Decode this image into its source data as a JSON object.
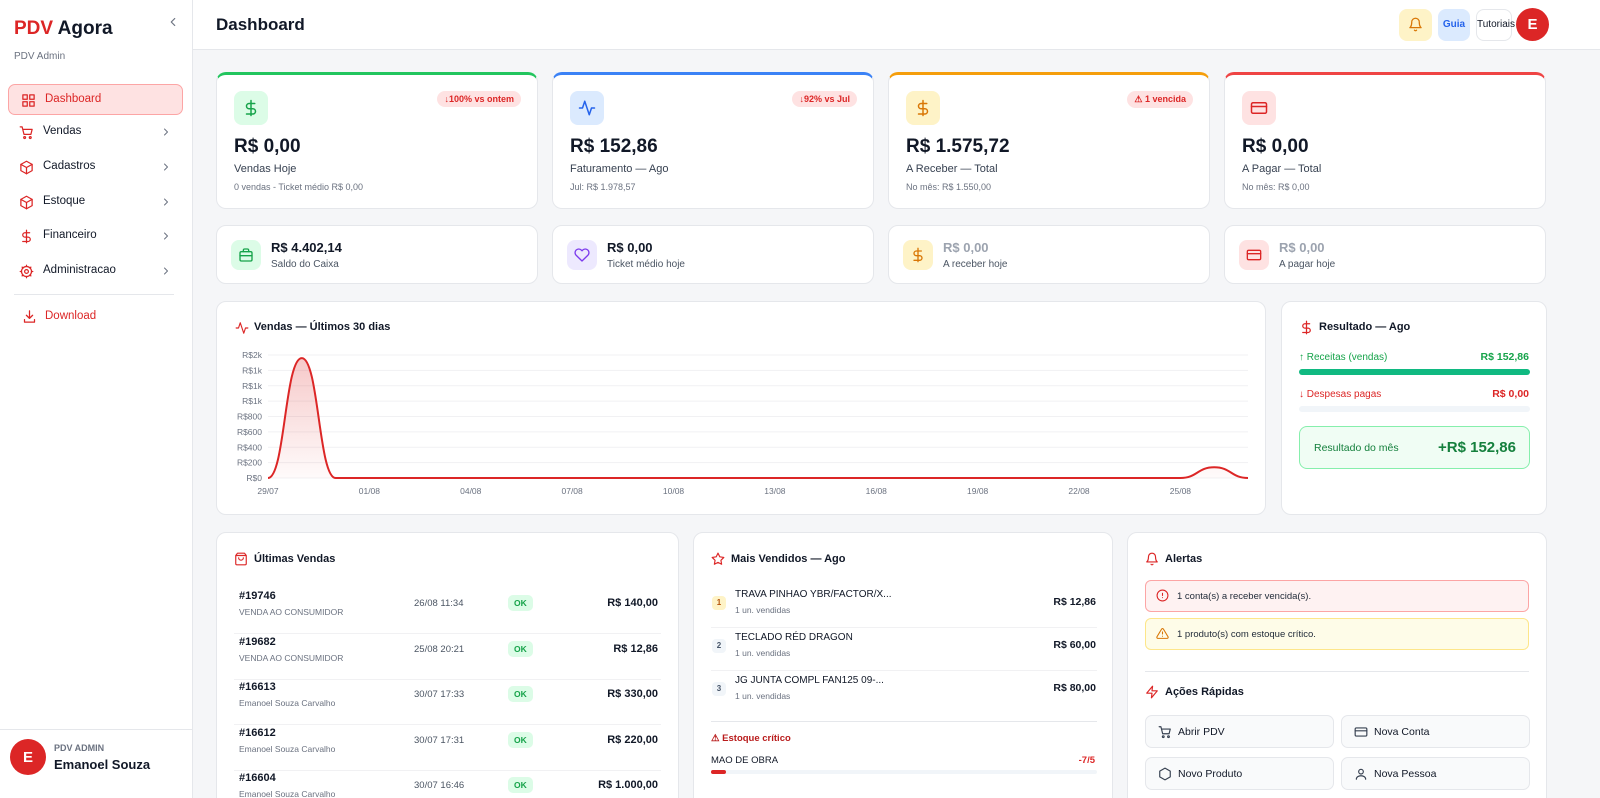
{
  "sidebar": {
    "brand_red": "PDV",
    "brand": "Agora",
    "subtitle": "PDV Admin",
    "nav": [
      "Dashboard",
      "Vendas",
      "Cadastros",
      "Estoque",
      "Financeiro",
      "Administracao"
    ],
    "download": "Download",
    "user": {
      "avatar": "E",
      "role": "PDV ADMIN",
      "name": "Emanoel Souza"
    }
  },
  "header": {
    "title": "Dashboard",
    "guide": "Guia",
    "tutorials": "Tutoriais",
    "avatar": "E"
  },
  "stat_cards": [
    {
      "value": "R$ 0,00",
      "label": "Vendas Hoje",
      "sub": "0 vendas - Ticket médio R$ 0,00",
      "badge": "↓100% vs ontem"
    },
    {
      "value": "R$ 152,86",
      "label": "Faturamento — Ago",
      "sub": "Jul: R$ 1.978,57",
      "badge": "↓92% vs Jul"
    },
    {
      "value": "R$ 1.575,72",
      "label": "A Receber — Total",
      "sub": "No mês: R$ 1.550,00",
      "badge": "⚠ 1 vencida"
    },
    {
      "value": "R$ 0,00",
      "label": "A Pagar — Total",
      "sub": "No mês: R$ 0,00"
    }
  ],
  "mini_cards": [
    {
      "value": "R$ 4.402,14",
      "label": "Saldo do Caixa"
    },
    {
      "value": "R$ 0,00",
      "label": "Ticket médio hoje"
    },
    {
      "value": "R$ 0,00",
      "label": "A receber hoje"
    },
    {
      "value": "R$ 0,00",
      "label": "A pagar hoje"
    }
  ],
  "chart_data": {
    "type": "line",
    "title": "Vendas — Últimos 30 dias",
    "color": "#dc2626",
    "grid": true,
    "categories": [
      "29/07",
      null,
      null,
      "01/08",
      null,
      null,
      "04/08",
      null,
      null,
      "07/08",
      null,
      null,
      "10/08",
      null,
      null,
      "13/08",
      null,
      null,
      "16/08",
      null,
      null,
      "19/08",
      null,
      null,
      "22/08",
      null,
      null,
      "25/08",
      null,
      null
    ],
    "values": [
      0,
      1560,
      0,
      0,
      0,
      0,
      0,
      0,
      0,
      0,
      0,
      0,
      0,
      0,
      0,
      0,
      0,
      0,
      0,
      0,
      0,
      0,
      0,
      0,
      0,
      0,
      0,
      0,
      140,
      0
    ],
    "ylim": [
      0,
      1600
    ],
    "yticks": [
      {
        "value": 0,
        "label": "R$0"
      },
      {
        "value": 200,
        "label": "R$200"
      },
      {
        "value": 400,
        "label": "R$400"
      },
      {
        "value": 600,
        "label": "R$600"
      },
      {
        "value": 800,
        "label": "R$800"
      },
      {
        "value": 1000,
        "label": "R$1k"
      },
      {
        "value": 1200,
        "label": "R$1k"
      },
      {
        "value": 1400,
        "label": "R$1k"
      },
      {
        "value": 1600,
        "label": "R$2k"
      }
    ]
  },
  "result": {
    "title": "Resultado — Ago",
    "income_label": "↑ Receitas (vendas)",
    "income": "R$ 152,86",
    "expense_label": "↓ Despesas pagas",
    "expense": "R$ 0,00",
    "total_label": "Resultado do mês",
    "total": "+R$ 152,86"
  },
  "latest_sales": {
    "title": "Últimas Vendas",
    "rows": [
      [
        "#19746",
        "VENDA AO CONSUMIDOR",
        "26/08 11:34",
        "OK",
        "R$ 140,00"
      ],
      [
        "#19682",
        "VENDA AO CONSUMIDOR",
        "25/08 20:21",
        "OK",
        "R$ 12,86"
      ],
      [
        "#16613",
        "Emanoel Souza Carvalho",
        "30/07 17:33",
        "OK",
        "R$ 330,00"
      ],
      [
        "#16612",
        "Emanoel Souza Carvalho",
        "30/07 17:31",
        "OK",
        "R$ 220,00"
      ],
      [
        "#16604",
        "Emanoel Souza Carvalho",
        "30/07 16:46",
        "OK",
        "R$ 1.000,00"
      ]
    ]
  },
  "top_sellers": {
    "title": "Mais Vendidos — Ago",
    "rows": [
      {
        "rank": "1",
        "name": "TRAVA PINHAO YBR/FACTOR/X...",
        "sub": "1 un. vendidas",
        "value": "R$ 12,86"
      },
      {
        "rank": "2",
        "name": "TECLADO RÉD DRAGON",
        "sub": "1 un. vendidas",
        "value": "R$ 60,00"
      },
      {
        "rank": "3",
        "name": "JG JUNTA COMPL FAN125 09-...",
        "sub": "1 un. vendidas",
        "value": "R$ 80,00"
      }
    ],
    "stock_title": "⚠ Estoque crítico",
    "stock_item": "MAO DE OBRA",
    "stock_value": "-7/5"
  },
  "alerts": {
    "title": "Alertas",
    "items": [
      "1 conta(s) a receber vencida(s).",
      "1 produto(s) com estoque crítico."
    ],
    "quick_title": "Ações Rápidas",
    "quick": [
      "Abrir PDV",
      "Nova Conta",
      "Novo Produto",
      "Nova Pessoa"
    ]
  }
}
